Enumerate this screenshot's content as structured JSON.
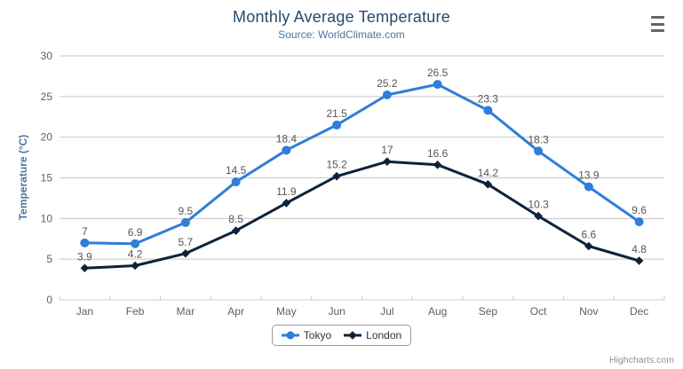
{
  "header": {
    "title": "Monthly Average Temperature",
    "subtitle": "Source: WorldClimate.com"
  },
  "export_menu": {
    "icon": "hamburger-icon",
    "tooltip": "Chart context menu"
  },
  "credits": {
    "label": "Highcharts.com"
  },
  "legend": {
    "items": [
      {
        "label": "Tokyo"
      },
      {
        "label": "London"
      }
    ]
  },
  "chart_data": {
    "type": "line",
    "title": "Monthly Average Temperature",
    "subtitle": "Source: WorldClimate.com",
    "categories": [
      "Jan",
      "Feb",
      "Mar",
      "Apr",
      "May",
      "Jun",
      "Jul",
      "Aug",
      "Sep",
      "Oct",
      "Nov",
      "Dec"
    ],
    "series": [
      {
        "name": "Tokyo",
        "color": "#2f7ed8",
        "marker": "circle",
        "values": [
          7,
          6.9,
          9.5,
          14.5,
          18.4,
          21.5,
          25.2,
          26.5,
          23.3,
          18.3,
          13.9,
          9.6
        ]
      },
      {
        "name": "London",
        "color": "#0d233a",
        "marker": "diamond",
        "values": [
          3.9,
          4.2,
          5.7,
          8.5,
          11.9,
          15.2,
          17,
          16.6,
          14.2,
          10.3,
          6.6,
          4.8
        ]
      }
    ],
    "xlabel": "",
    "ylabel": "Temperature (°C)",
    "ylim": [
      0,
      30
    ],
    "ytick_interval": 5,
    "grid": true,
    "data_labels": true,
    "legend_position": "bottom"
  },
  "colors": {
    "title": "#274b6d",
    "subtitle": "#4d759e",
    "axis_title": "#4d759e",
    "axis_label": "#606060",
    "grid_line": "#c8c8c8",
    "axis_line": "#c0d0e0",
    "data_label": "#555555",
    "legend_text": "#333333",
    "legend_border": "#999999",
    "credits_text": "#909090",
    "menu_icon": "#666666"
  }
}
